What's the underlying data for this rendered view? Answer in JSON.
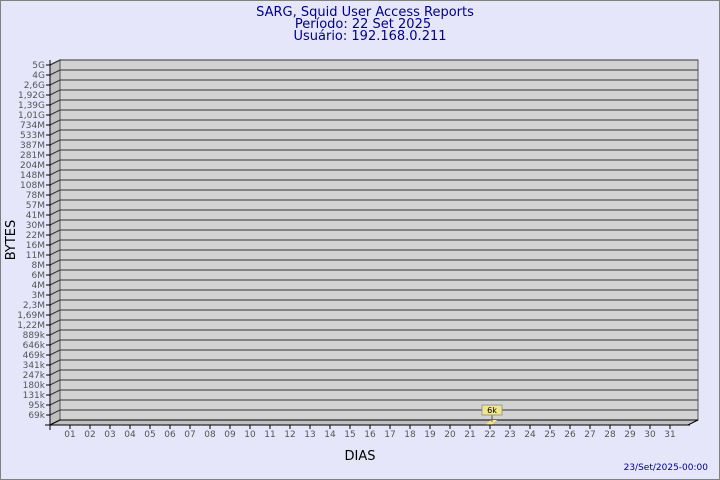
{
  "chart_data": {
    "type": "bar",
    "title": "SARG, Squid User Access Reports",
    "subtitle_period": "Período: 22 Set 2025",
    "subtitle_user": "Usuário: 192.168.0.211",
    "xlabel": "DIAS",
    "ylabel": "BYTES",
    "y_scale": "log",
    "y_tick_labels": [
      "5G",
      "4G",
      "2,6G",
      "1,92G",
      "1,39G",
      "1,01G",
      "734M",
      "533M",
      "387M",
      "281M",
      "204M",
      "148M",
      "108M",
      "78M",
      "57M",
      "41M",
      "30M",
      "22M",
      "16M",
      "11M",
      "8M",
      "6M",
      "4M",
      "3M",
      "2,3M",
      "1,69M",
      "1,22M",
      "889k",
      "646k",
      "469k",
      "341k",
      "247k",
      "180k",
      "131k",
      "95k",
      "69k"
    ],
    "categories": [
      "01",
      "02",
      "03",
      "04",
      "05",
      "06",
      "07",
      "08",
      "09",
      "10",
      "11",
      "12",
      "13",
      "14",
      "15",
      "16",
      "17",
      "18",
      "19",
      "20",
      "21",
      "22",
      "23",
      "24",
      "25",
      "26",
      "27",
      "28",
      "29",
      "30",
      "31"
    ],
    "bars": [
      {
        "category": "22",
        "value": 6000,
        "label": "6k"
      }
    ],
    "grid": true,
    "colors": {
      "background": "#e6e6fa",
      "plot": "#d3d3d3",
      "bar": "#ffe680",
      "text": "#00008b"
    }
  },
  "footer": {
    "timestamp": "23/Set/2025-00:00"
  }
}
